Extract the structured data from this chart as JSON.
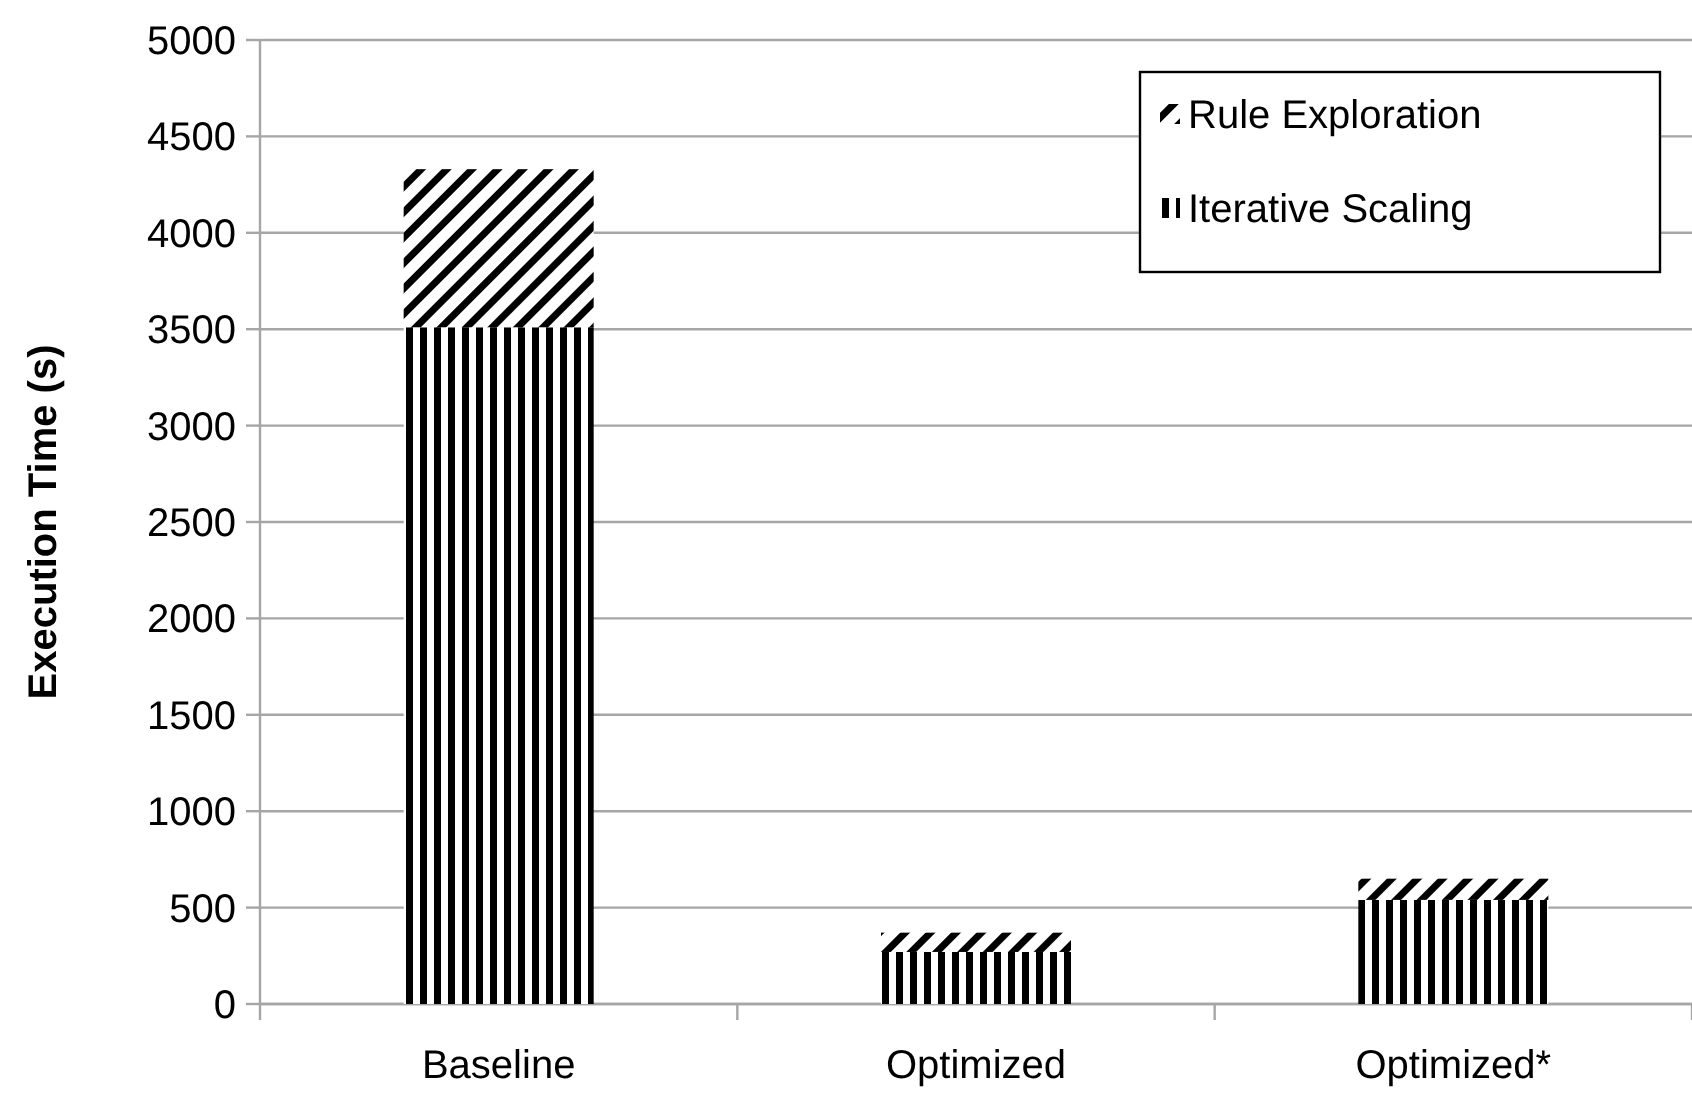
{
  "chart_data": {
    "type": "bar",
    "ylabel": "Execution Time (s)",
    "categories": [
      "Baseline",
      "Optimized",
      "Optimized*"
    ],
    "stacked": true,
    "series": [
      {
        "name": "Iterative Scaling",
        "color": "#000000",
        "values": [
          3510,
          270,
          540
        ]
      },
      {
        "name": "Rule Exploration",
        "color": "#000000",
        "values": [
          820,
          100,
          110
        ]
      }
    ],
    "ylim": [
      0,
      5000
    ],
    "yticks": [
      0,
      500,
      1000,
      1500,
      2000,
      2500,
      3000,
      3500,
      4000,
      4500,
      5000
    ],
    "grid": "y",
    "legend": "top right"
  }
}
